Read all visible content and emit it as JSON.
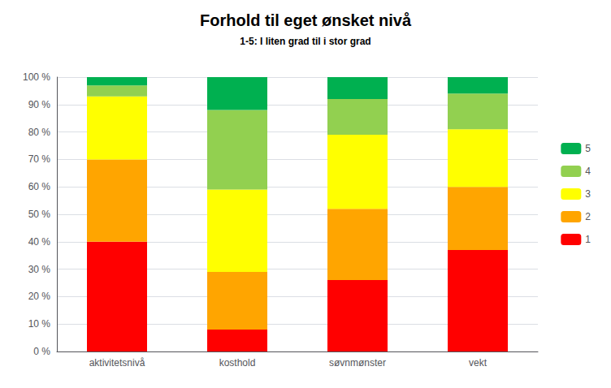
{
  "chart_data": {
    "type": "bar",
    "title": "Forhold til eget ønsket nivå",
    "subtitle": "1-5: I liten grad til i stor grad",
    "categories": [
      "aktivitetsnivå",
      "kosthold",
      "søvnmønster",
      "vekt"
    ],
    "series": [
      {
        "name": "1",
        "color": "#FF0000",
        "values": [
          40,
          8,
          26,
          37
        ]
      },
      {
        "name": "2",
        "color": "#FFA500",
        "values": [
          30,
          21,
          26,
          23
        ]
      },
      {
        "name": "3",
        "color": "#FFFF00",
        "values": [
          23,
          30,
          27,
          21
        ]
      },
      {
        "name": "4",
        "color": "#92D050",
        "values": [
          4,
          29,
          13,
          13
        ]
      },
      {
        "name": "5",
        "color": "#00B050",
        "values": [
          3,
          12,
          8,
          6
        ]
      }
    ],
    "stacked": true,
    "ylim": [
      0,
      100
    ],
    "yticks": [
      {
        "value": 0,
        "label": "0 %"
      },
      {
        "value": 10,
        "label": "10 %"
      },
      {
        "value": 20,
        "label": "20 %"
      },
      {
        "value": 30,
        "label": "30 %"
      },
      {
        "value": 40,
        "label": "40 %"
      },
      {
        "value": 50,
        "label": "50 %"
      },
      {
        "value": 60,
        "label": "60 %"
      },
      {
        "value": 70,
        "label": "70 %"
      },
      {
        "value": 80,
        "label": "80 %"
      },
      {
        "value": 90,
        "label": "90 %"
      },
      {
        "value": 100,
        "label": "100 %"
      }
    ],
    "grid": true,
    "legend": "right"
  }
}
